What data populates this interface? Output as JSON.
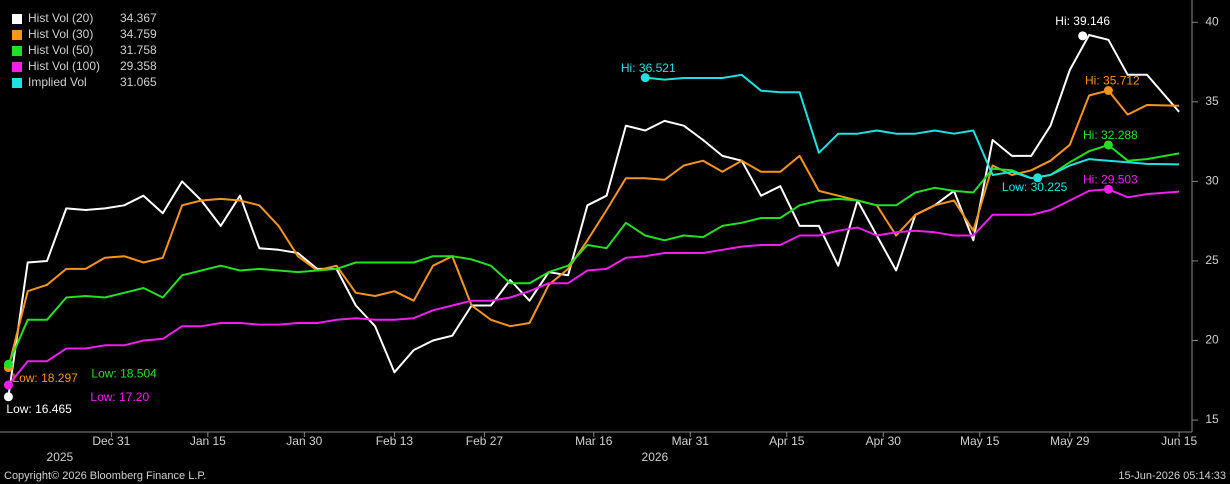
{
  "chart_data": {
    "type": "line",
    "x": [
      "2025-12-15",
      "2025-12-18",
      "2025-12-21",
      "2025-12-24",
      "2025-12-27",
      "2025-12-30",
      "2026-01-02",
      "2026-01-05",
      "2026-01-08",
      "2026-01-11",
      "2026-01-14",
      "2026-01-17",
      "2026-01-20",
      "2026-01-23",
      "2026-01-26",
      "2026-01-29",
      "2026-02-01",
      "2026-02-04",
      "2026-02-07",
      "2026-02-10",
      "2026-02-13",
      "2026-02-16",
      "2026-02-19",
      "2026-02-22",
      "2026-02-25",
      "2026-02-28",
      "2026-03-03",
      "2026-03-06",
      "2026-03-09",
      "2026-03-12",
      "2026-03-15",
      "2026-03-18",
      "2026-03-21",
      "2026-03-24",
      "2026-03-27",
      "2026-03-30",
      "2026-04-02",
      "2026-04-05",
      "2026-04-08",
      "2026-04-11",
      "2026-04-14",
      "2026-04-17",
      "2026-04-20",
      "2026-04-23",
      "2026-04-26",
      "2026-04-29",
      "2026-05-02",
      "2026-05-05",
      "2026-05-08",
      "2026-05-11",
      "2026-05-14",
      "2026-05-17",
      "2026-05-20",
      "2026-05-23",
      "2026-05-26",
      "2026-05-29",
      "2026-06-01",
      "2026-06-04",
      "2026-06-07",
      "2026-06-10",
      "2026-06-15"
    ],
    "xlim": [
      "2025-12-14",
      "2026-06-17"
    ],
    "xticks": [
      {
        "value": "2025-12-31",
        "label": "Dec 31"
      },
      {
        "value": "2026-01-15",
        "label": "Jan 15"
      },
      {
        "value": "2026-01-30",
        "label": "Jan 30"
      },
      {
        "value": "2026-02-13",
        "label": "Feb 13"
      },
      {
        "value": "2026-02-27",
        "label": "Feb 27"
      },
      {
        "value": "2026-03-16",
        "label": "Mar 16"
      },
      {
        "value": "2026-03-31",
        "label": "Mar 31"
      },
      {
        "value": "2026-04-15",
        "label": "Apr 15"
      },
      {
        "value": "2026-04-30",
        "label": "Apr 30"
      },
      {
        "value": "2026-05-15",
        "label": "May 15"
      },
      {
        "value": "2026-05-29",
        "label": "May 29"
      },
      {
        "value": "2026-06-15",
        "label": "Jun 15"
      }
    ],
    "x_year_labels": [
      "2025",
      "2026"
    ],
    "ylim": [
      14.25,
      41.4
    ],
    "yticks": [
      15,
      20,
      25,
      30,
      35,
      40
    ],
    "y_axis_side": "right",
    "legend": "top-left",
    "series": [
      {
        "name": "Hist Vol (20)",
        "color": "#ffffff",
        "last_value": 34.367,
        "values": [
          16.465,
          24.9,
          25.0,
          28.3,
          28.2,
          28.3,
          28.5,
          29.1,
          28.0,
          30.0,
          28.8,
          27.2,
          29.1,
          25.8,
          25.7,
          25.5,
          24.5,
          24.5,
          22.2,
          20.9,
          18.0,
          19.4,
          20.0,
          20.3,
          22.2,
          22.2,
          23.8,
          22.5,
          24.3,
          24.1,
          28.5,
          29.1,
          33.5,
          33.2,
          33.8,
          33.5,
          32.6,
          31.6,
          31.3,
          29.1,
          29.7,
          27.2,
          27.2,
          24.7,
          28.8,
          26.6,
          24.4,
          27.9,
          28.5,
          29.4,
          26.3,
          32.6,
          31.6,
          31.6,
          33.5,
          37.0,
          39.2,
          38.9,
          36.7,
          36.7,
          34.367
        ],
        "extremes": [
          {
            "label": "Hi: 39.146",
            "x": "2026-05-31",
            "value": 39.146
          },
          {
            "label": "Low: 16.465",
            "x": "2025-12-15",
            "value": 16.465
          }
        ]
      },
      {
        "name": "Hist Vol (30)",
        "color": "#f7941d",
        "last_value": 34.759,
        "values": [
          18.297,
          23.1,
          23.5,
          24.5,
          24.5,
          25.2,
          25.3,
          24.9,
          25.2,
          28.5,
          28.8,
          28.9,
          28.8,
          28.5,
          27.2,
          25.3,
          24.4,
          24.7,
          23.0,
          22.8,
          23.1,
          22.5,
          24.7,
          25.3,
          22.2,
          21.3,
          20.9,
          21.1,
          23.5,
          24.5,
          26.3,
          28.2,
          30.2,
          30.2,
          30.1,
          31.0,
          31.3,
          30.6,
          31.3,
          30.6,
          30.6,
          31.6,
          29.4,
          29.1,
          28.8,
          28.5,
          26.6,
          27.9,
          28.5,
          28.8,
          26.9,
          31.0,
          30.4,
          30.7,
          31.3,
          32.3,
          35.4,
          35.712,
          34.2,
          34.8,
          34.759
        ],
        "extremes": [
          {
            "label": "Hi: 35.712",
            "x": "2026-06-04",
            "value": 35.712
          },
          {
            "label": "Low: 18.297",
            "x": "2025-12-15",
            "value": 18.297
          }
        ]
      },
      {
        "name": "Hist Vol (50)",
        "color": "#22e022",
        "last_value": 31.758,
        "values": [
          18.504,
          21.3,
          21.3,
          22.7,
          22.8,
          22.7,
          23.0,
          23.3,
          22.7,
          24.1,
          24.4,
          24.7,
          24.4,
          24.5,
          24.4,
          24.3,
          24.4,
          24.5,
          24.9,
          24.9,
          24.9,
          24.9,
          25.3,
          25.3,
          25.1,
          24.7,
          23.6,
          23.6,
          24.3,
          24.7,
          26.0,
          25.8,
          27.4,
          26.6,
          26.3,
          26.6,
          26.5,
          27.2,
          27.4,
          27.7,
          27.7,
          28.5,
          28.8,
          28.9,
          28.8,
          28.5,
          28.5,
          29.3,
          29.6,
          29.4,
          29.3,
          30.8,
          30.7,
          30.2,
          30.4,
          31.2,
          31.9,
          32.288,
          31.3,
          31.4,
          31.758
        ],
        "extremes": [
          {
            "label": "Hi: 32.288",
            "x": "2026-06-04",
            "value": 32.288
          },
          {
            "label": "Low: 18.504",
            "x": "2025-12-15",
            "value": 18.504
          }
        ]
      },
      {
        "name": "Hist Vol (100)",
        "color": "#f01ef0",
        "last_value": 29.358,
        "values": [
          17.2,
          18.7,
          18.7,
          19.5,
          19.5,
          19.7,
          19.7,
          20.0,
          20.1,
          20.9,
          20.9,
          21.1,
          21.1,
          21.0,
          21.0,
          21.1,
          21.1,
          21.3,
          21.4,
          21.3,
          21.3,
          21.4,
          21.9,
          22.2,
          22.5,
          22.5,
          22.7,
          23.1,
          23.6,
          23.6,
          24.4,
          24.5,
          25.2,
          25.3,
          25.5,
          25.5,
          25.5,
          25.7,
          25.9,
          26.0,
          26.0,
          26.6,
          26.6,
          26.9,
          27.1,
          26.6,
          26.8,
          26.9,
          26.8,
          26.6,
          26.6,
          27.9,
          27.9,
          27.9,
          28.2,
          28.8,
          29.4,
          29.503,
          29.0,
          29.2,
          29.358
        ],
        "extremes": [
          {
            "label": "Hi: 29.503",
            "x": "2026-06-04",
            "value": 29.503
          },
          {
            "label": "Low: 17.20",
            "x": "2025-12-15",
            "value": 17.2
          }
        ]
      },
      {
        "name": "Implied Vol",
        "color": "#22e0e0",
        "last_value": 31.065,
        "values": [
          null,
          null,
          null,
          null,
          null,
          null,
          null,
          null,
          null,
          null,
          null,
          null,
          null,
          null,
          null,
          null,
          null,
          null,
          null,
          null,
          null,
          null,
          null,
          null,
          null,
          null,
          null,
          null,
          null,
          null,
          null,
          null,
          null,
          36.521,
          36.4,
          36.5,
          36.5,
          36.5,
          36.7,
          35.7,
          35.6,
          35.6,
          31.8,
          33.0,
          33.0,
          33.2,
          33.0,
          33.0,
          33.2,
          33.0,
          33.2,
          30.4,
          30.6,
          30.2,
          30.4,
          31.0,
          31.4,
          31.3,
          31.2,
          31.1,
          31.065
        ],
        "extremes": [
          {
            "label": "Hi: 36.521",
            "x": "2026-03-24",
            "value": 36.521
          },
          {
            "label": "Low: 30.225",
            "x": "2026-05-24",
            "value": 30.225
          }
        ]
      }
    ],
    "source": "Copyright© 2026 Bloomberg Finance L.P.",
    "timestamp": "15-Jun-2026 05:14:33"
  }
}
